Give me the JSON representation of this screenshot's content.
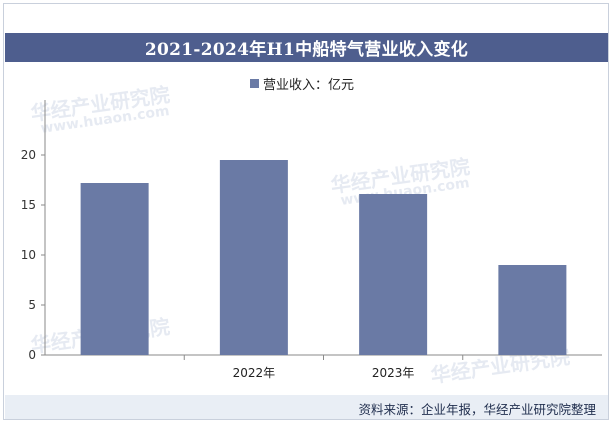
{
  "chart_data": {
    "type": "bar",
    "title": "2021-2024年H1中船特气营业收入变化",
    "legend": {
      "label": "营业收入：亿元",
      "position": "top"
    },
    "categories": [
      "",
      "2022年",
      "2023年",
      ""
    ],
    "series": [
      {
        "name": "营业收入：亿元",
        "values": [
          17.2,
          19.5,
          16.1,
          9.0
        ]
      }
    ],
    "yticks": [
      0,
      5,
      10,
      15,
      20
    ],
    "ylim": [
      0,
      25
    ],
    "grid": false,
    "bar_color": "#6a7aa5"
  },
  "header": {
    "bar_color": "#4e5e8e"
  },
  "footer": {
    "source": "资料来源：企业年报，华经产业研究院整理"
  },
  "watermark": {
    "name": "华经产业研究院",
    "url": "www.huaon.com"
  }
}
